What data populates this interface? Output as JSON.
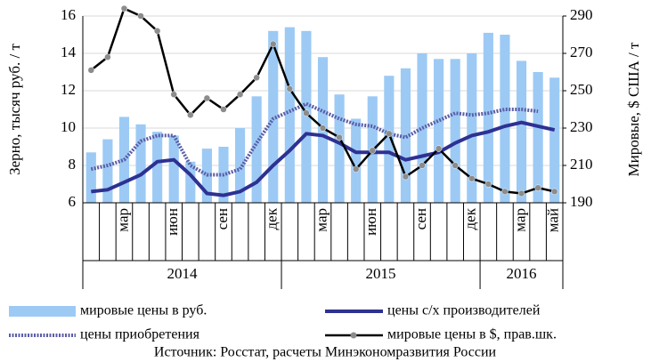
{
  "chart_data": {
    "type": "bar_line_dual",
    "y_label": "Зерно, тысяч руб. / т",
    "y2_label": "Мировые, $ США / т",
    "source": "Источник: Росстат, расчеты Минэкономразвития России",
    "categories": [
      null,
      null,
      "мар",
      null,
      null,
      "июн",
      null,
      null,
      "сен",
      null,
      null,
      "дек",
      null,
      null,
      "мар",
      null,
      null,
      "июн",
      null,
      null,
      "сен",
      null,
      null,
      "дек",
      null,
      null,
      "мар",
      null,
      "май"
    ],
    "year_groups": [
      {
        "label": "2014",
        "months": 12
      },
      {
        "label": "2015",
        "months": 12
      },
      {
        "label": "2016",
        "months": 5
      }
    ],
    "ylim": [
      6,
      16
    ],
    "yticks": [
      6,
      8,
      10,
      12,
      14,
      16
    ],
    "y2lim": [
      190,
      290
    ],
    "y2ticks": [
      190,
      210,
      230,
      250,
      270,
      290
    ],
    "grid": true,
    "series": [
      {
        "name": "мировые цены в руб.",
        "type": "bar",
        "color": "#9ccaf5",
        "values": [
          8.7,
          9.4,
          10.6,
          10.2,
          9.8,
          9.6,
          8.2,
          8.9,
          9.0,
          10.0,
          11.7,
          15.2,
          15.4,
          15.2,
          13.8,
          11.8,
          10.5,
          11.7,
          12.8,
          13.2,
          14.0,
          13.7,
          13.7,
          14.0,
          15.1,
          15.0,
          13.6,
          13.0,
          12.7
        ]
      },
      {
        "name": "цены с/х производителей",
        "type": "line",
        "color": "#2e3192",
        "values": [
          6.6,
          6.7,
          7.1,
          7.5,
          8.2,
          8.3,
          7.5,
          6.5,
          6.4,
          6.6,
          7.1,
          8.0,
          8.8,
          9.7,
          9.6,
          9.2,
          8.7,
          8.7,
          8.7,
          8.3,
          8.5,
          8.7,
          9.2,
          9.6,
          9.8,
          10.1,
          10.3,
          10.1,
          9.9
        ]
      },
      {
        "name": "цены приобретения",
        "type": "dashed-line",
        "color": "#5a5ea8",
        "values": [
          7.8,
          8.0,
          8.3,
          9.3,
          9.6,
          9.6,
          8.0,
          7.5,
          7.5,
          7.8,
          9.2,
          10.5,
          10.9,
          11.3,
          10.9,
          10.5,
          10.2,
          10.1,
          9.7,
          9.5,
          10.0,
          10.4,
          10.8,
          10.7,
          10.8,
          11.0,
          11.0,
          10.9,
          null
        ]
      },
      {
        "name": "мировые цены в $, прав.шк.",
        "type": "marker-line",
        "color": "#000000",
        "marker_color": "#8c8c8c",
        "axis": "y2",
        "values": [
          261,
          268,
          294,
          290,
          282,
          248,
          237,
          246,
          240,
          248,
          257,
          275,
          251,
          238,
          230,
          225,
          208,
          218,
          227,
          204,
          210,
          219,
          210,
          203,
          200,
          196,
          195,
          198,
          196
        ]
      }
    ]
  }
}
